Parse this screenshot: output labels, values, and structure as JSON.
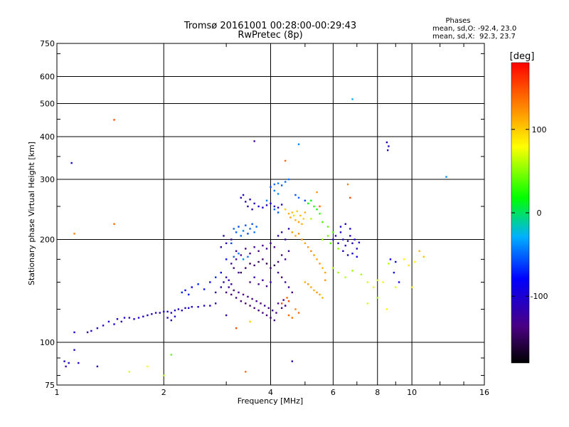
{
  "chart_data": {
    "type": "scatter",
    "title": "Tromsø 20161001 00:28:00-00:29:43",
    "subtitle": "RwPretec (8p)",
    "xlabel": "Frequency [MHz]",
    "ylabel": "Stationary phase Virtual Height [km]",
    "xscale": "log",
    "yscale": "log",
    "xlim": [
      1,
      16
    ],
    "ylim": [
      75,
      750
    ],
    "xticks": [
      1,
      2,
      4,
      6,
      8,
      10,
      16
    ],
    "yticks": [
      75,
      100,
      200,
      300,
      400,
      500,
      600,
      750
    ],
    "grid": true,
    "colorbar": {
      "label": "[deg]",
      "range": [
        -180,
        180
      ],
      "ticks": [
        100,
        0,
        -100
      ]
    },
    "legend": {
      "header": "Phases",
      "lines": [
        "mean, sd,O: -92.4, 23.0",
        "mean, sd,X:  92.3, 23.7"
      ]
    },
    "points": [
      [
        1.05,
        88,
        -110
      ],
      [
        1.06,
        85,
        -120
      ],
      [
        1.08,
        87,
        -100
      ],
      [
        1.1,
        335,
        -90
      ],
      [
        1.12,
        107,
        -100
      ],
      [
        1.12,
        95,
        -110
      ],
      [
        1.15,
        87,
        -100
      ],
      [
        1.22,
        107,
        -110
      ],
      [
        1.25,
        108,
        -105
      ],
      [
        1.3,
        110,
        -100
      ],
      [
        1.35,
        112,
        -110
      ],
      [
        1.4,
        115,
        -100
      ],
      [
        1.45,
        113,
        -95
      ],
      [
        1.48,
        117,
        -100
      ],
      [
        1.52,
        115,
        -105
      ],
      [
        1.55,
        118,
        -100
      ],
      [
        1.6,
        118,
        -110
      ],
      [
        1.65,
        117,
        -95
      ],
      [
        1.7,
        118,
        -100
      ],
      [
        1.75,
        119,
        -110
      ],
      [
        1.8,
        120,
        -100
      ],
      [
        1.85,
        121,
        -105
      ],
      [
        1.9,
        122,
        -100
      ],
      [
        1.95,
        122,
        -110
      ],
      [
        2.0,
        123,
        -100
      ],
      [
        2.05,
        123,
        -95
      ],
      [
        2.1,
        122,
        -110
      ],
      [
        2.15,
        124,
        -100
      ],
      [
        2.2,
        125,
        -105
      ],
      [
        2.25,
        124,
        -100
      ],
      [
        2.3,
        126,
        -110
      ],
      [
        2.35,
        126,
        -100
      ],
      [
        2.4,
        127,
        -95
      ],
      [
        2.5,
        127,
        -100
      ],
      [
        2.6,
        128,
        -110
      ],
      [
        2.7,
        128,
        -100
      ],
      [
        2.8,
        130,
        -105
      ],
      [
        2.05,
        118,
        -110
      ],
      [
        2.1,
        116,
        -100
      ],
      [
        2.15,
        119,
        -105
      ],
      [
        2.25,
        140,
        -70
      ],
      [
        2.3,
        142,
        -80
      ],
      [
        2.35,
        138,
        -75
      ],
      [
        2.4,
        145,
        -80
      ],
      [
        2.5,
        148,
        -70
      ],
      [
        2.6,
        143,
        -75
      ],
      [
        2.7,
        150,
        -80
      ],
      [
        2.8,
        155,
        -70
      ],
      [
        2.9,
        160,
        -80
      ],
      [
        3.0,
        175,
        -75
      ],
      [
        3.1,
        195,
        -60
      ],
      [
        3.15,
        215,
        -50
      ],
      [
        3.2,
        210,
        -55
      ],
      [
        3.25,
        218,
        -60
      ],
      [
        3.3,
        205,
        -50
      ],
      [
        3.35,
        212,
        -45
      ],
      [
        3.4,
        220,
        -55
      ],
      [
        3.45,
        208,
        -60
      ],
      [
        3.5,
        215,
        -50
      ],
      [
        3.55,
        222,
        -55
      ],
      [
        3.6,
        210,
        -45
      ],
      [
        3.65,
        218,
        -50
      ],
      [
        3.3,
        265,
        -110
      ],
      [
        3.35,
        270,
        -100
      ],
      [
        3.4,
        258,
        -120
      ],
      [
        3.45,
        250,
        -110
      ],
      [
        3.5,
        262,
        -100
      ],
      [
        3.55,
        245,
        -115
      ],
      [
        3.6,
        255,
        -110
      ],
      [
        3.7,
        250,
        -100
      ],
      [
        3.8,
        248,
        -95
      ],
      [
        3.9,
        252,
        -110
      ],
      [
        4.0,
        255,
        -100
      ],
      [
        4.1,
        250,
        -105
      ],
      [
        4.2,
        248,
        -110
      ],
      [
        4.3,
        253,
        -95
      ],
      [
        4.0,
        285,
        -55
      ],
      [
        4.1,
        290,
        -50
      ],
      [
        4.2,
        292,
        -45
      ],
      [
        4.3,
        288,
        -55
      ],
      [
        4.4,
        295,
        -50
      ],
      [
        4.5,
        300,
        -45
      ],
      [
        4.1,
        245,
        -50
      ],
      [
        4.2,
        240,
        -55
      ],
      [
        4.4,
        245,
        100
      ],
      [
        4.5,
        238,
        110
      ],
      [
        4.55,
        232,
        115
      ],
      [
        4.6,
        240,
        105
      ],
      [
        4.65,
        235,
        95
      ],
      [
        4.7,
        228,
        110
      ],
      [
        4.75,
        242,
        100
      ],
      [
        4.8,
        225,
        115
      ],
      [
        4.85,
        235,
        105
      ],
      [
        4.9,
        222,
        110
      ],
      [
        4.95,
        230,
        100
      ],
      [
        5.0,
        240,
        110
      ],
      [
        5.1,
        255,
        20
      ],
      [
        5.2,
        260,
        15
      ],
      [
        5.3,
        250,
        25
      ],
      [
        5.4,
        245,
        20
      ],
      [
        5.5,
        238,
        30
      ],
      [
        5.6,
        225,
        35
      ],
      [
        5.8,
        218,
        40
      ],
      [
        6.0,
        210,
        35
      ],
      [
        4.6,
        210,
        120
      ],
      [
        4.7,
        205,
        115
      ],
      [
        4.8,
        208,
        125
      ],
      [
        4.9,
        200,
        120
      ],
      [
        5.0,
        195,
        115
      ],
      [
        5.1,
        190,
        120
      ],
      [
        5.2,
        185,
        125
      ],
      [
        5.3,
        180,
        120
      ],
      [
        5.4,
        175,
        115
      ],
      [
        5.5,
        170,
        120
      ],
      [
        5.6,
        165,
        110
      ],
      [
        5.7,
        160,
        115
      ],
      [
        5.0,
        150,
        110
      ],
      [
        5.1,
        148,
        120
      ],
      [
        5.2,
        145,
        115
      ],
      [
        5.3,
        142,
        110
      ],
      [
        5.4,
        140,
        120
      ],
      [
        5.5,
        138,
        115
      ],
      [
        5.6,
        135,
        110
      ],
      [
        5.7,
        152,
        120
      ],
      [
        4.5,
        120,
        140
      ],
      [
        4.6,
        118,
        135
      ],
      [
        4.7,
        125,
        130
      ],
      [
        4.8,
        122,
        140
      ],
      [
        4.3,
        130,
        150
      ],
      [
        4.4,
        128,
        145
      ],
      [
        4.45,
        135,
        140
      ],
      [
        4.5,
        132,
        150
      ],
      [
        3.0,
        140,
        -140
      ],
      [
        3.05,
        145,
        -130
      ],
      [
        3.1,
        138,
        -140
      ],
      [
        3.15,
        142,
        -135
      ],
      [
        3.2,
        135,
        -140
      ],
      [
        3.25,
        140,
        -130
      ],
      [
        3.3,
        132,
        -140
      ],
      [
        3.35,
        138,
        -135
      ],
      [
        3.4,
        130,
        -140
      ],
      [
        3.45,
        136,
        -130
      ],
      [
        3.5,
        128,
        -140
      ],
      [
        3.55,
        134,
        -135
      ],
      [
        3.6,
        126,
        -140
      ],
      [
        3.65,
        132,
        -130
      ],
      [
        3.7,
        124,
        -140
      ],
      [
        3.75,
        130,
        -135
      ],
      [
        3.8,
        122,
        -140
      ],
      [
        3.85,
        128,
        -130
      ],
      [
        3.9,
        120,
        -140
      ],
      [
        3.95,
        126,
        -135
      ],
      [
        4.0,
        118,
        -140
      ],
      [
        4.05,
        124,
        -130
      ],
      [
        4.1,
        116,
        -140
      ],
      [
        4.15,
        122,
        -135
      ],
      [
        3.3,
        160,
        -150
      ],
      [
        3.4,
        165,
        -145
      ],
      [
        3.5,
        170,
        -150
      ],
      [
        3.6,
        168,
        -140
      ],
      [
        3.7,
        172,
        -150
      ],
      [
        3.8,
        175,
        -145
      ],
      [
        3.9,
        170,
        -150
      ],
      [
        4.0,
        165,
        -140
      ],
      [
        4.1,
        168,
        -150
      ],
      [
        4.2,
        172,
        -145
      ],
      [
        3.5,
        150,
        -130
      ],
      [
        3.6,
        155,
        -125
      ],
      [
        3.7,
        148,
        -130
      ],
      [
        3.8,
        152,
        -125
      ],
      [
        3.9,
        146,
        -130
      ],
      [
        4.0,
        150,
        -125
      ],
      [
        3.2,
        185,
        -130
      ],
      [
        3.3,
        180,
        -135
      ],
      [
        3.4,
        188,
        -130
      ],
      [
        3.5,
        182,
        -125
      ],
      [
        3.6,
        190,
        -130
      ],
      [
        3.7,
        185,
        -135
      ],
      [
        3.8,
        192,
        -130
      ],
      [
        3.9,
        188,
        -125
      ],
      [
        4.0,
        195,
        -130
      ],
      [
        4.1,
        190,
        -135
      ],
      [
        3.1,
        170,
        -125
      ],
      [
        3.15,
        165,
        -130
      ],
      [
        3.2,
        175,
        -125
      ],
      [
        3.25,
        160,
        -130
      ],
      [
        2.9,
        145,
        -120
      ],
      [
        2.95,
        150,
        -115
      ],
      [
        3.0,
        155,
        -120
      ],
      [
        3.05,
        152,
        -115
      ],
      [
        3.1,
        148,
        -120
      ],
      [
        2.8,
        140,
        -115
      ],
      [
        4.2,
        205,
        -120
      ],
      [
        4.3,
        210,
        -115
      ],
      [
        4.4,
        200,
        -120
      ],
      [
        4.5,
        215,
        -115
      ],
      [
        4.3,
        180,
        -130
      ],
      [
        4.4,
        175,
        -125
      ],
      [
        4.5,
        185,
        -130
      ],
      [
        4.2,
        160,
        -125
      ],
      [
        4.3,
        155,
        -130
      ],
      [
        4.4,
        150,
        -125
      ],
      [
        4.5,
        145,
        -130
      ],
      [
        4.6,
        140,
        -125
      ],
      [
        4.2,
        130,
        -130
      ],
      [
        4.3,
        126,
        -125
      ],
      [
        4.35,
        133,
        -130
      ],
      [
        4.4,
        128,
        -125
      ],
      [
        6.0,
        200,
        -110
      ],
      [
        6.1,
        205,
        -105
      ],
      [
        6.2,
        195,
        -110
      ],
      [
        6.3,
        210,
        -100
      ],
      [
        6.4,
        200,
        -110
      ],
      [
        6.5,
        192,
        -105
      ],
      [
        6.6,
        198,
        -110
      ],
      [
        6.7,
        205,
        -100
      ],
      [
        6.8,
        195,
        -110
      ],
      [
        6.9,
        200,
        -105
      ],
      [
        7.0,
        188,
        -110
      ],
      [
        7.1,
        196,
        -100
      ],
      [
        6.3,
        218,
        -95
      ],
      [
        6.5,
        222,
        -100
      ],
      [
        6.7,
        215,
        -95
      ],
      [
        6.4,
        185,
        -100
      ],
      [
        6.6,
        180,
        -95
      ],
      [
        6.8,
        182,
        -100
      ],
      [
        7.0,
        178,
        -95
      ],
      [
        6.0,
        165,
        60
      ],
      [
        6.2,
        160,
        55
      ],
      [
        6.5,
        155,
        60
      ],
      [
        6.8,
        162,
        55
      ],
      [
        7.2,
        158,
        60
      ],
      [
        7.5,
        150,
        70
      ],
      [
        7.8,
        145,
        75
      ],
      [
        8.0,
        152,
        70
      ],
      [
        8.3,
        150,
        75
      ],
      [
        8.6,
        170,
        60
      ],
      [
        8.7,
        175,
        -90
      ],
      [
        8.9,
        160,
        -85
      ],
      [
        9.0,
        172,
        -90
      ],
      [
        9.2,
        150,
        -95
      ],
      [
        9.5,
        175,
        80
      ],
      [
        9.8,
        168,
        90
      ],
      [
        10.0,
        145,
        90
      ],
      [
        10.2,
        172,
        85
      ],
      [
        10.5,
        185,
        110
      ],
      [
        10.8,
        178,
        105
      ],
      [
        7.5,
        130,
        70
      ],
      [
        8.0,
        135,
        60
      ],
      [
        8.5,
        125,
        80
      ],
      [
        9.0,
        145,
        70
      ],
      [
        8.5,
        385,
        -100
      ],
      [
        8.6,
        375,
        -110
      ],
      [
        8.55,
        365,
        -105
      ],
      [
        6.8,
        515,
        -30
      ],
      [
        12.5,
        305,
        -40
      ],
      [
        1.45,
        448,
        150
      ],
      [
        1.45,
        222,
        140
      ],
      [
        1.12,
        208,
        130
      ],
      [
        1.3,
        85,
        -110
      ],
      [
        1.8,
        85,
        80
      ],
      [
        2.0,
        80,
        60
      ],
      [
        2.1,
        92,
        40
      ],
      [
        1.6,
        82,
        70
      ],
      [
        3.0,
        120,
        -120
      ],
      [
        3.2,
        110,
        150
      ],
      [
        3.5,
        115,
        100
      ],
      [
        3.4,
        82,
        140
      ],
      [
        4.6,
        88,
        -120
      ],
      [
        3.6,
        388,
        -130
      ],
      [
        4.8,
        380,
        -40
      ],
      [
        4.4,
        340,
        140
      ],
      [
        5.4,
        275,
        120
      ],
      [
        5.5,
        250,
        140
      ],
      [
        6.6,
        290,
        130
      ],
      [
        6.7,
        265,
        150
      ],
      [
        5.0,
        260,
        -60
      ],
      [
        4.7,
        270,
        -55
      ],
      [
        4.8,
        265,
        -50
      ],
      [
        4.1,
        278,
        -45
      ],
      [
        4.2,
        272,
        -40
      ],
      [
        3.9,
        260,
        -45
      ],
      [
        5.2,
        230,
        60
      ],
      [
        5.6,
        200,
        50
      ],
      [
        5.8,
        205,
        45
      ],
      [
        5.9,
        195,
        40
      ],
      [
        6.2,
        188,
        50
      ],
      [
        3.0,
        195,
        -110
      ],
      [
        3.1,
        200,
        -115
      ],
      [
        2.95,
        205,
        -110
      ],
      [
        2.9,
        190,
        -115
      ],
      [
        3.15,
        178,
        -50
      ],
      [
        3.25,
        182,
        -45
      ],
      [
        3.35,
        175,
        -40
      ],
      [
        3.45,
        178,
        -45
      ]
    ]
  }
}
